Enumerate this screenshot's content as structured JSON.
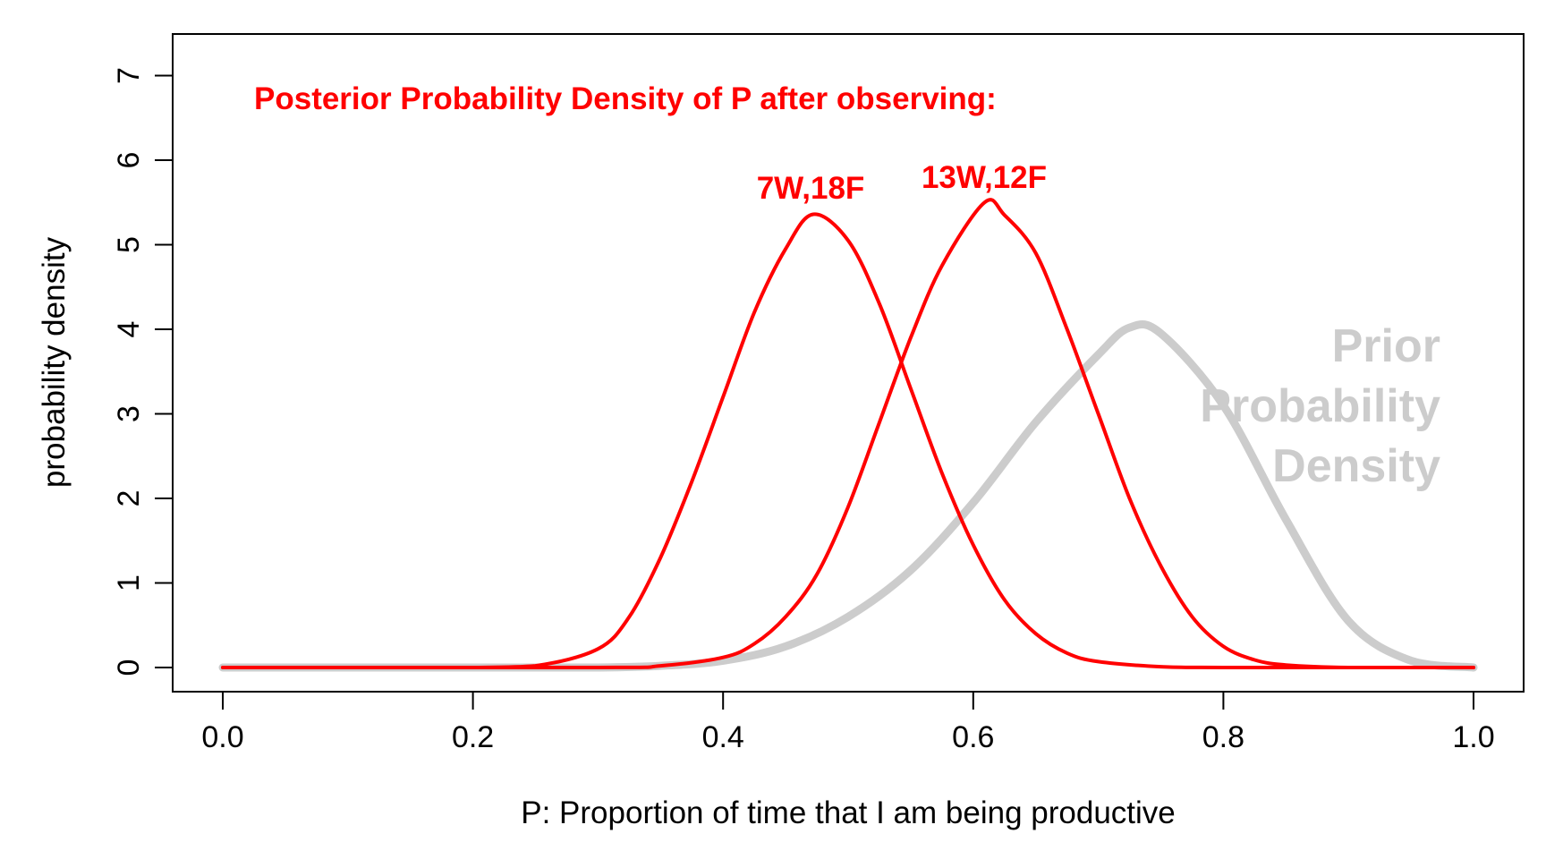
{
  "chart_data": {
    "type": "line",
    "xlabel": "P: Proportion of time that I am being productive",
    "ylabel": "probability density",
    "xlim": [
      0,
      1
    ],
    "ylim": [
      0,
      7
    ],
    "x_ticks": [
      "0.0",
      "0.2",
      "0.4",
      "0.6",
      "0.8",
      "1.0"
    ],
    "y_ticks": [
      "0",
      "1",
      "2",
      "3",
      "4",
      "5",
      "6",
      "7"
    ],
    "grid": false,
    "colors": {
      "posterior": "#ff0000",
      "prior": "#cccccc",
      "axis": "#000000"
    },
    "annotations": {
      "posterior_title": "Posterior Probability Density of P after observing:",
      "label_a": "7W,18F",
      "label_b": "13W,12F",
      "prior_lines": [
        "Prior",
        "Probability",
        "Density"
      ]
    },
    "series": [
      {
        "label": "Prior Probability Density",
        "color": "#cccccc",
        "points": [
          [
            0.0,
            0.0
          ],
          [
            0.05,
            0.0
          ],
          [
            0.1,
            0.0
          ],
          [
            0.15,
            0.0
          ],
          [
            0.2,
            0.0
          ],
          [
            0.25,
            0.0
          ],
          [
            0.3,
            0.0
          ],
          [
            0.35,
            0.02
          ],
          [
            0.4,
            0.08
          ],
          [
            0.45,
            0.25
          ],
          [
            0.5,
            0.6
          ],
          [
            0.55,
            1.15
          ],
          [
            0.6,
            1.95
          ],
          [
            0.65,
            2.9
          ],
          [
            0.7,
            3.7
          ],
          [
            0.725,
            4.02
          ],
          [
            0.75,
            3.95
          ],
          [
            0.8,
            3.1
          ],
          [
            0.85,
            1.75
          ],
          [
            0.9,
            0.55
          ],
          [
            0.95,
            0.08
          ],
          [
            1.0,
            0.0
          ]
        ]
      },
      {
        "label": "7W,18F",
        "color": "#ff0000",
        "points": [
          [
            0.0,
            0.0
          ],
          [
            0.15,
            0.0
          ],
          [
            0.2,
            0.0
          ],
          [
            0.25,
            0.02
          ],
          [
            0.3,
            0.22
          ],
          [
            0.325,
            0.6
          ],
          [
            0.35,
            1.3
          ],
          [
            0.375,
            2.2
          ],
          [
            0.4,
            3.2
          ],
          [
            0.425,
            4.2
          ],
          [
            0.45,
            4.95
          ],
          [
            0.472,
            5.36
          ],
          [
            0.5,
            5.05
          ],
          [
            0.525,
            4.3
          ],
          [
            0.55,
            3.3
          ],
          [
            0.575,
            2.3
          ],
          [
            0.6,
            1.45
          ],
          [
            0.625,
            0.8
          ],
          [
            0.65,
            0.4
          ],
          [
            0.675,
            0.17
          ],
          [
            0.7,
            0.07
          ],
          [
            0.75,
            0.01
          ],
          [
            0.8,
            0.0
          ],
          [
            1.0,
            0.0
          ]
        ]
      },
      {
        "label": "13W,12F",
        "color": "#ff0000",
        "points": [
          [
            0.0,
            0.0
          ],
          [
            0.3,
            0.0
          ],
          [
            0.35,
            0.02
          ],
          [
            0.4,
            0.12
          ],
          [
            0.425,
            0.28
          ],
          [
            0.45,
            0.6
          ],
          [
            0.475,
            1.1
          ],
          [
            0.5,
            1.9
          ],
          [
            0.525,
            2.9
          ],
          [
            0.55,
            3.9
          ],
          [
            0.575,
            4.75
          ],
          [
            0.609,
            5.5
          ],
          [
            0.625,
            5.35
          ],
          [
            0.65,
            4.9
          ],
          [
            0.675,
            4.0
          ],
          [
            0.7,
            3.0
          ],
          [
            0.725,
            2.0
          ],
          [
            0.75,
            1.2
          ],
          [
            0.775,
            0.6
          ],
          [
            0.8,
            0.25
          ],
          [
            0.825,
            0.09
          ],
          [
            0.85,
            0.03
          ],
          [
            0.9,
            0.0
          ],
          [
            1.0,
            0.0
          ]
        ]
      }
    ]
  }
}
